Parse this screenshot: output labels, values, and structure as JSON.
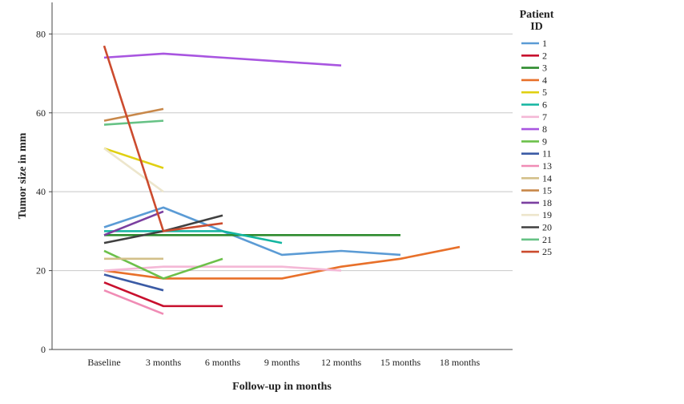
{
  "chart_data": {
    "type": "line",
    "xlabel": "Follow-up in months",
    "ylabel": "Tumor size in mm",
    "categories": [
      "Baseline",
      "3 months",
      "6 months",
      "9 months",
      "12 months",
      "15 months",
      "18 months"
    ],
    "yticks": [
      0,
      20,
      40,
      60,
      80
    ],
    "ylim": [
      0,
      88
    ],
    "grid": "horizontal",
    "legend": {
      "title": "Patient ID",
      "placement": "right"
    },
    "series": [
      {
        "name": "1",
        "color": "#5b9bd5",
        "values": [
          31,
          36,
          30,
          24,
          25,
          24,
          null
        ]
      },
      {
        "name": "2",
        "color": "#c8102e",
        "values": [
          17,
          11,
          11,
          null,
          null,
          null,
          null
        ]
      },
      {
        "name": "3",
        "color": "#2e8b2e",
        "values": [
          29,
          29,
          29,
          29,
          29,
          29,
          null
        ]
      },
      {
        "name": "4",
        "color": "#e8702a",
        "values": [
          20,
          18,
          18,
          18,
          21,
          23,
          26
        ]
      },
      {
        "name": "5",
        "color": "#e0d012",
        "values": [
          51,
          46,
          null,
          null,
          null,
          null,
          null
        ]
      },
      {
        "name": "6",
        "color": "#13b5a0",
        "values": [
          30,
          30,
          30,
          27,
          null,
          null,
          null
        ]
      },
      {
        "name": "7",
        "color": "#f4b8d6",
        "values": [
          20,
          21,
          21,
          21,
          20,
          null,
          null
        ]
      },
      {
        "name": "8",
        "color": "#a855e0",
        "values": [
          74,
          75,
          74,
          73,
          72,
          null,
          null
        ]
      },
      {
        "name": "9",
        "color": "#6cc04a",
        "values": [
          25,
          18,
          23,
          null,
          null,
          null,
          null
        ]
      },
      {
        "name": "11",
        "color": "#3b5ba5",
        "values": [
          19,
          15,
          null,
          null,
          null,
          null,
          null
        ]
      },
      {
        "name": "13",
        "color": "#f08cb5",
        "values": [
          15,
          9,
          null,
          null,
          null,
          null,
          null
        ]
      },
      {
        "name": "14",
        "color": "#d3c08a",
        "values": [
          23,
          23,
          null,
          null,
          null,
          null,
          null
        ]
      },
      {
        "name": "15",
        "color": "#c8884a",
        "values": [
          58,
          61,
          null,
          null,
          null,
          null,
          null
        ]
      },
      {
        "name": "18",
        "color": "#7b3fa0",
        "values": [
          29,
          35,
          null,
          null,
          null,
          null,
          null
        ]
      },
      {
        "name": "19",
        "color": "#ede6cc",
        "values": [
          51,
          40,
          null,
          null,
          null,
          null,
          null
        ]
      },
      {
        "name": "20",
        "color": "#404040",
        "values": [
          27,
          30,
          34,
          null,
          null,
          null,
          null
        ]
      },
      {
        "name": "21",
        "color": "#66c285",
        "values": [
          57,
          58,
          null,
          null,
          null,
          null,
          null
        ]
      },
      {
        "name": "25",
        "color": "#cc4b2e",
        "values": [
          77,
          30,
          32,
          null,
          null,
          null,
          null
        ]
      }
    ]
  }
}
